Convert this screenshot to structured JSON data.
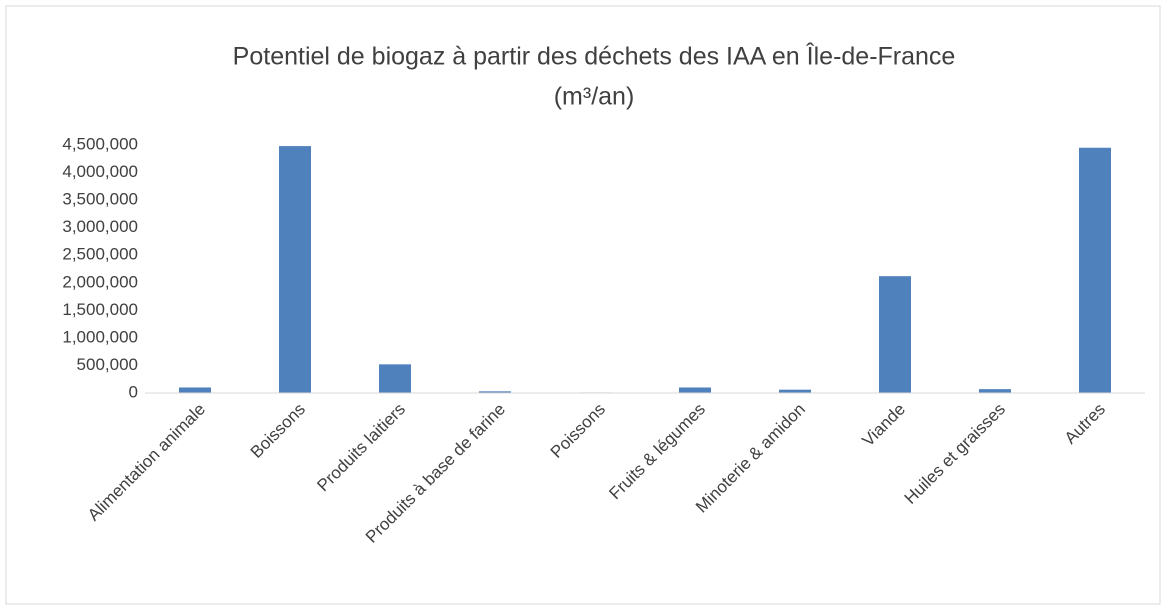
{
  "chart_data": {
    "type": "bar",
    "title": [
      "Potentiel de biogaz à partir des déchets des IAA en Île-de-France",
      "(m³/an)"
    ],
    "categories": [
      "Alimentation animale",
      "Boissons",
      "Produits laitiers",
      "Produits à base de farine",
      "Poissons",
      "Fruits & légumes",
      "Minoterie & amidon",
      "Viande",
      "Huiles et graisses",
      "Autres"
    ],
    "values": [
      100000,
      4480000,
      520000,
      30000,
      10000,
      100000,
      60000,
      2120000,
      70000,
      4450000
    ],
    "color": "#4f81bd",
    "ylim": [
      0,
      4500000
    ],
    "yticks": [
      0,
      {
        "value": 500000,
        "label": "500,000"
      },
      {
        "value": 1000000,
        "label": "1,000,000"
      },
      {
        "value": 1500000,
        "label": "1,500,000"
      },
      {
        "value": 2000000,
        "label": "2,000,000"
      },
      {
        "value": 2500000,
        "label": "2,500,000"
      },
      {
        "value": 3000000,
        "label": "3,000,000"
      },
      {
        "value": 3500000,
        "label": "3,500,000"
      },
      {
        "value": 4000000,
        "label": "4,000,000"
      },
      {
        "value": 4500000,
        "label": "4,500,000"
      }
    ],
    "grid": false
  }
}
